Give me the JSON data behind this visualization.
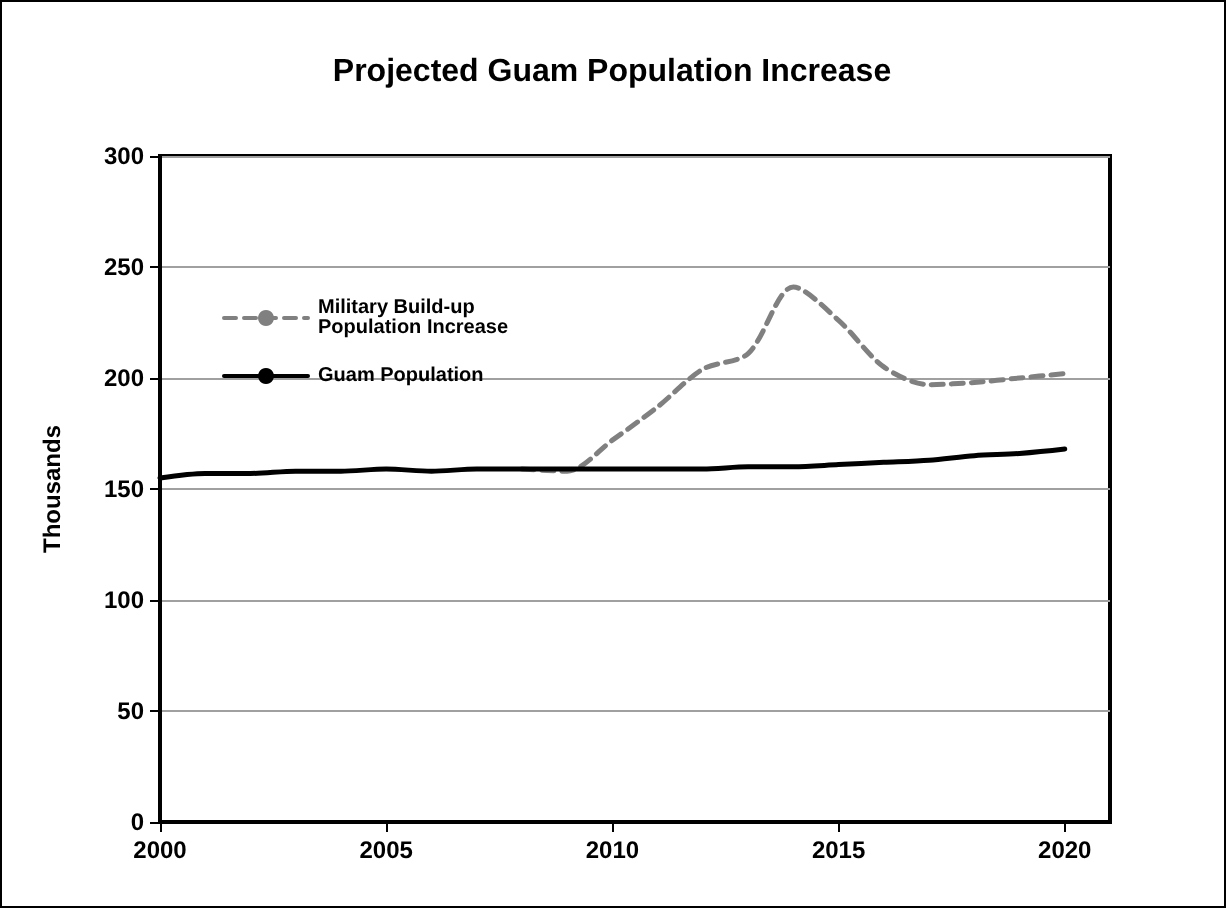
{
  "chart_data": {
    "type": "line",
    "title": "Projected Guam Population Increase",
    "ylabel": "Thousands",
    "x": [
      2000,
      2001,
      2002,
      2003,
      2004,
      2005,
      2006,
      2007,
      2008,
      2009,
      2010,
      2011,
      2012,
      2013,
      2014,
      2015,
      2016,
      2017,
      2018,
      2019,
      2020
    ],
    "series": [
      {
        "name": "Military Build-up Population Increase",
        "color": "#808080",
        "line_style": "dashed",
        "x": [
          2008,
          2009,
          2010,
          2011,
          2012,
          2013,
          2014,
          2015,
          2016,
          2017,
          2018,
          2019,
          2020
        ],
        "values": [
          159,
          158,
          172,
          187,
          204,
          211,
          241,
          226,
          205,
          197,
          198,
          200,
          202
        ]
      },
      {
        "name": "Guam Population",
        "color": "#000000",
        "line_style": "solid",
        "values": [
          155,
          157,
          157,
          158,
          158,
          159,
          158,
          159,
          159,
          159,
          159,
          159,
          159,
          160,
          160,
          161,
          162,
          163,
          165,
          166,
          168
        ]
      }
    ],
    "xlim": [
      2000,
      2021
    ],
    "xticks": [
      2000,
      2005,
      2010,
      2015,
      2020
    ],
    "ylim": [
      0,
      300
    ],
    "yticks": [
      0,
      50,
      100,
      150,
      200,
      250,
      300
    ],
    "grid": "y",
    "legend": "top left",
    "marker": "none"
  }
}
